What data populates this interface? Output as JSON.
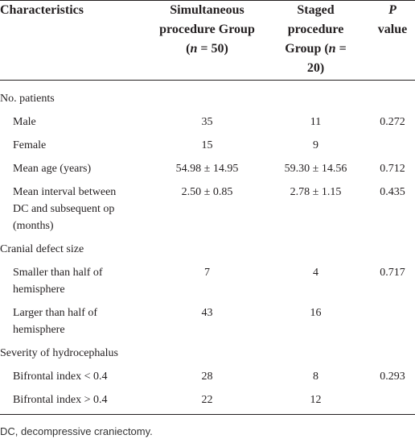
{
  "table": {
    "header": [
      "Characteristics",
      [
        "Simultaneous procedure Group (",
        "n",
        " = 50)"
      ],
      [
        "Staged procedure Group (",
        "n",
        " = 20)"
      ],
      [
        "P",
        " value"
      ]
    ],
    "rows": [
      {
        "group": "No. patients"
      },
      {
        "label": "Male",
        "simultaneous": "35",
        "staged": "11",
        "p": "0.272"
      },
      {
        "label": "Female",
        "simultaneous": "15",
        "staged": "9"
      },
      {
        "label": "Mean age (years)",
        "simultaneous": "54.98 ± 14.95",
        "staged": "59.30 ± 14.56",
        "p": "0.712"
      },
      {
        "label": "Mean interval between DC and subsequent op (months)",
        "simultaneous": "2.50 ± 0.85",
        "staged": "2.78 ± 1.15",
        "p": "0.435"
      },
      {
        "group": "Cranial defect size"
      },
      {
        "label": "Smaller than half of hemisphere",
        "simultaneous": "7",
        "staged": "4",
        "p": "0.717"
      },
      {
        "label": "Larger than half of hemisphere",
        "simultaneous": "43",
        "staged": "16"
      },
      {
        "group": "Severity of hydrocephalus"
      },
      {
        "label": "Bifrontal index < 0.4",
        "simultaneous": "28",
        "staged": "8",
        "p": "0.293"
      },
      {
        "label": "Bifrontal index > 0.4",
        "simultaneous": "22",
        "staged": "12"
      }
    ]
  },
  "footnote": "DC, decompressive craniectomy."
}
